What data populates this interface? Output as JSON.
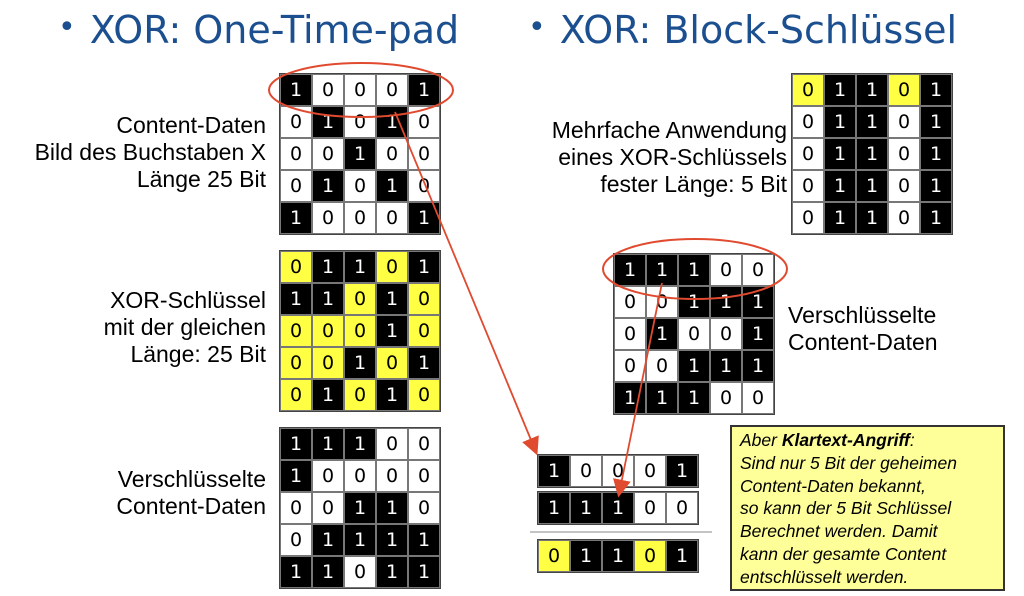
{
  "left": {
    "title": "XOR: One-Time-pad",
    "content_label": [
      "Content-Daten",
      "Bild des Buchstaben X",
      "Länge 25 Bit"
    ],
    "key_label": [
      "XOR-Schlüssel",
      "mit der gleichen",
      "Länge: 25 Bit"
    ],
    "encrypted_label": [
      "Verschlüsselte",
      "Content-Daten"
    ]
  },
  "right": {
    "title": "XOR: Block-Schlüssel",
    "key_label": [
      "Mehrfache Anwendung",
      "eines XOR-Schlüssels",
      "fester Länge: 5 Bit"
    ],
    "encrypted_label": [
      "Verschlüsselte",
      "Content-Daten"
    ]
  },
  "note": {
    "prefix": "Aber ",
    "bold": "Klartext-Angriff",
    "suffix": ":",
    "lines": [
      "Sind nur 5 Bit der geheimen",
      "Content-Daten bekannt,",
      "so kann der 5 Bit Schlüssel",
      "Berechnet werden. Damit",
      "kann der gesamte Content",
      "entschlüsselt werden."
    ]
  },
  "colors": {
    "title": "#1b4f8f",
    "highlight": "#ffff44",
    "annotation": "#e04a2f",
    "note_bg": "#ffff99"
  },
  "grids": {
    "content": {
      "yellow_rows": [],
      "rows": [
        [
          1,
          0,
          0,
          0,
          1
        ],
        [
          0,
          1,
          0,
          1,
          0
        ],
        [
          0,
          0,
          1,
          0,
          0
        ],
        [
          0,
          1,
          0,
          1,
          0
        ],
        [
          1,
          0,
          0,
          0,
          1
        ]
      ]
    },
    "otp_key": {
      "yellow_rows": [
        0,
        1,
        2,
        3,
        4
      ],
      "rows": [
        [
          0,
          1,
          1,
          0,
          1
        ],
        [
          1,
          1,
          0,
          1,
          0
        ],
        [
          0,
          0,
          0,
          1,
          0
        ],
        [
          0,
          0,
          1,
          0,
          1
        ],
        [
          0,
          1,
          0,
          1,
          0
        ]
      ]
    },
    "otp_encrypted": {
      "yellow_rows": [],
      "rows": [
        [
          1,
          1,
          1,
          0,
          0
        ],
        [
          1,
          0,
          0,
          0,
          0
        ],
        [
          0,
          0,
          1,
          1,
          0
        ],
        [
          0,
          1,
          1,
          1,
          1
        ],
        [
          1,
          1,
          0,
          1,
          1
        ]
      ]
    },
    "block_key": {
      "yellow_rows": [
        0
      ],
      "rows": [
        [
          0,
          1,
          1,
          0,
          1
        ],
        [
          0,
          1,
          1,
          0,
          1
        ],
        [
          0,
          1,
          1,
          0,
          1
        ],
        [
          0,
          1,
          1,
          0,
          1
        ],
        [
          0,
          1,
          1,
          0,
          1
        ]
      ]
    },
    "block_encrypted": {
      "yellow_rows": [],
      "rows": [
        [
          1,
          1,
          1,
          0,
          0
        ],
        [
          0,
          0,
          1,
          1,
          1
        ],
        [
          0,
          1,
          0,
          0,
          1
        ],
        [
          0,
          0,
          1,
          1,
          1
        ],
        [
          1,
          1,
          1,
          0,
          0
        ]
      ]
    },
    "attack_plain": {
      "yellow_rows": [],
      "rows": [
        [
          1,
          0,
          0,
          0,
          1
        ]
      ]
    },
    "attack_cipher": {
      "yellow_rows": [],
      "rows": [
        [
          1,
          1,
          1,
          0,
          0
        ]
      ]
    },
    "attack_key": {
      "yellow_rows": [
        0
      ],
      "rows": [
        [
          0,
          1,
          1,
          0,
          1
        ]
      ]
    }
  }
}
